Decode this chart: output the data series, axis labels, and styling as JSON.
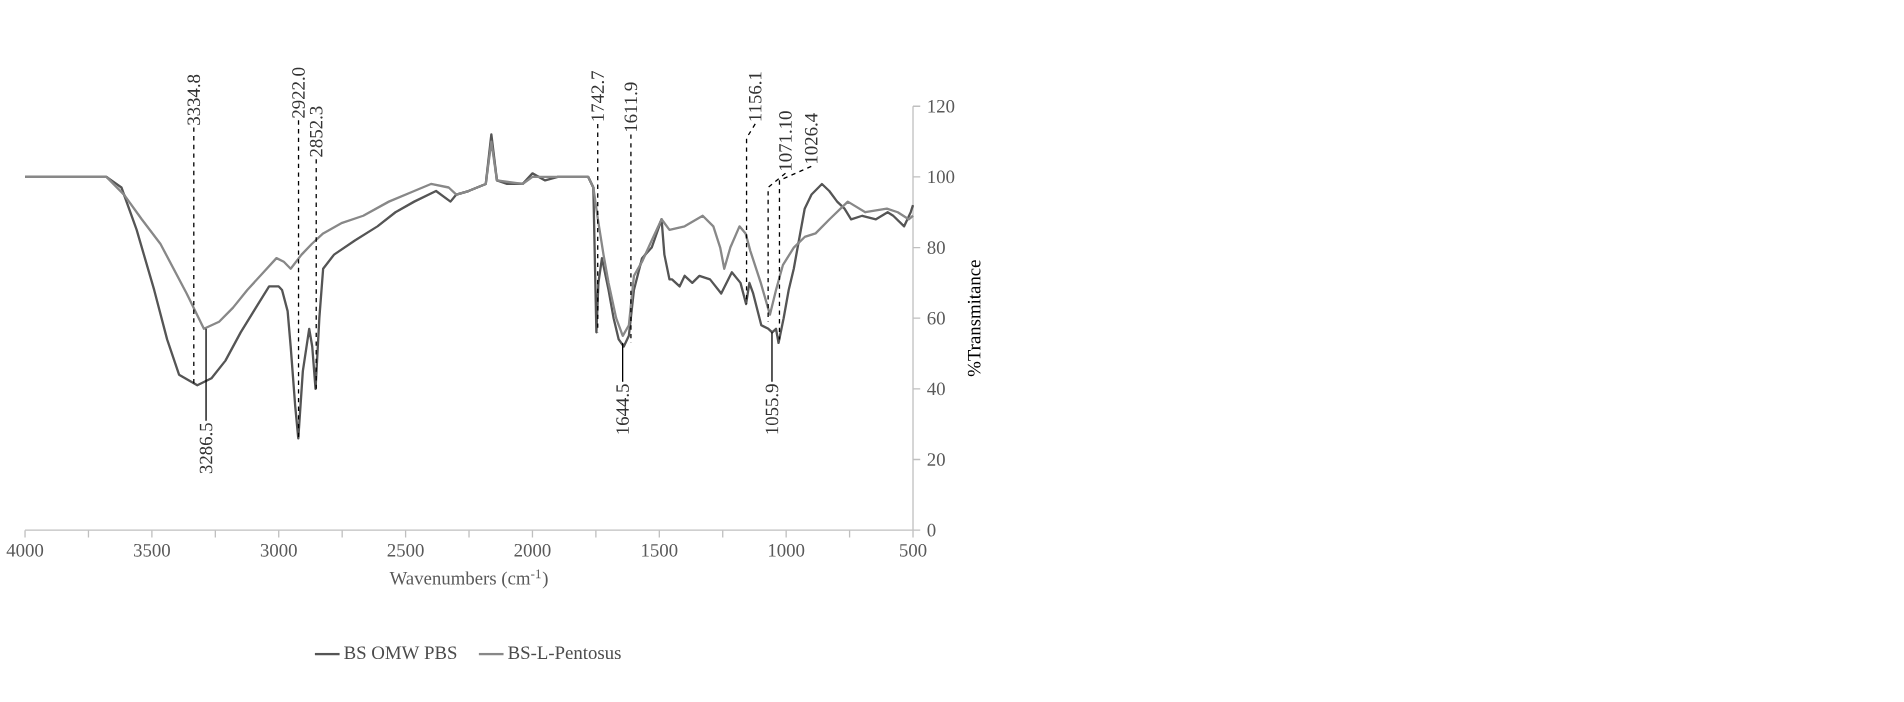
{
  "chart_data": {
    "type": "line",
    "xlabel": "Wavenumbers (cm$^{-1}$)",
    "ylabel": "%Transmitance",
    "xlim": [
      4000,
      500
    ],
    "xticks": [
      4000,
      {
        "value": 3750,
        "label": null
      },
      3500,
      {
        "value": 3250,
        "label": null
      },
      3000,
      {
        "value": 2750,
        "label": null
      },
      2500,
      {
        "value": 2250,
        "label": null
      },
      2000,
      {
        "value": 1750,
        "label": null
      },
      1500,
      {
        "value": 1250,
        "label": null
      },
      1000,
      {
        "value": 750,
        "label": null
      },
      500
    ],
    "ylim": [
      0,
      120
    ],
    "yticks": [
      0,
      20,
      40,
      60,
      80,
      100,
      120
    ],
    "grid": false,
    "legend": "bottom",
    "marker": "none",
    "line_style": "solid",
    "series": [
      {
        "name": "BS OMW PBS",
        "color": "#555555",
        "x": [
          4000,
          3900,
          3800,
          3700,
          3679,
          3620,
          3560,
          3491,
          3440,
          3393,
          3321,
          3265,
          3210,
          3150,
          3090,
          3038,
          3000,
          2987,
          2965,
          2953,
          2935,
          2923,
          2905,
          2880,
          2868,
          2855,
          2840,
          2825,
          2782,
          2700,
          2611,
          2540,
          2466,
          2380,
          2323,
          2300,
          2252,
          2184,
          2162,
          2140,
          2100,
          2039,
          2000,
          1950,
          1900,
          1850,
          1780,
          1760,
          1748,
          1740,
          1726,
          1700,
          1680,
          1660,
          1640,
          1620,
          1600,
          1568,
          1530,
          1491,
          1480,
          1460,
          1450,
          1420,
          1400,
          1370,
          1342,
          1300,
          1256,
          1214,
          1180,
          1158,
          1145,
          1130,
          1098,
          1070,
          1055,
          1040,
          1030,
          1010,
          990,
          970,
          927,
          900,
          859,
          830,
          799,
          770,
          744,
          700,
          646,
          600,
          578,
          535,
          509,
          500
        ],
        "values": [
          100,
          100,
          100,
          100,
          100,
          97,
          85,
          68,
          54,
          44,
          41,
          43,
          48,
          56,
          63,
          69,
          69,
          68,
          62,
          52,
          35,
          26,
          45,
          57,
          52,
          40,
          60,
          74,
          78,
          82,
          86,
          90,
          93,
          96,
          93,
          95,
          96,
          98,
          112,
          99,
          98,
          98,
          101,
          99,
          100,
          100,
          100,
          97,
          56,
          70,
          77,
          68,
          60,
          54,
          52,
          55,
          68,
          77,
          80,
          88,
          78,
          71,
          71,
          69,
          72,
          70,
          72,
          71,
          67,
          73,
          70,
          64,
          70,
          67,
          58,
          57,
          56,
          57,
          53,
          60,
          68,
          74,
          91,
          95,
          98,
          96,
          93,
          91,
          88,
          89,
          88,
          90,
          89,
          86,
          90,
          92
        ]
      },
      {
        "name": "BS-L-Pentosus",
        "color": "#888888",
        "x": [
          4000,
          3800,
          3700,
          3679,
          3610,
          3540,
          3466,
          3363,
          3295,
          3235,
          3180,
          3124,
          3060,
          3009,
          2980,
          2953,
          2910,
          2870,
          2825,
          2750,
          2667,
          2566,
          2466,
          2400,
          2330,
          2300,
          2252,
          2184,
          2162,
          2140,
          2039,
          2000,
          1900,
          1780,
          1760,
          1742,
          1720,
          1700,
          1670,
          1644,
          1620,
          1600,
          1568,
          1530,
          1491,
          1460,
          1400,
          1329,
          1287,
          1260,
          1244,
          1220,
          1184,
          1160,
          1141,
          1100,
          1064,
          1040,
          1013,
          970,
          927,
          884,
          829,
          757,
          688,
          603,
          560,
          517,
          500
        ],
        "values": [
          100,
          100,
          100,
          100,
          95,
          88,
          81,
          67,
          57,
          59,
          63,
          68,
          73,
          77,
          76,
          74,
          78,
          81,
          84,
          87,
          89,
          93,
          96,
          98,
          97,
          95,
          96,
          98,
          110,
          99,
          98,
          100,
          100,
          100,
          97,
          88,
          78,
          70,
          60,
          55,
          58,
          72,
          76,
          82,
          88,
          85,
          86,
          89,
          86,
          80,
          74,
          80,
          86,
          84,
          79,
          70,
          61,
          68,
          75,
          80,
          83,
          84,
          88,
          93,
          90,
          91,
          90,
          88,
          89
        ]
      }
    ],
    "annotations": [
      {
        "text": "3334.8",
        "x": 3334.8,
        "y": 41
      },
      {
        "text": "2922.0",
        "x": 2922.0,
        "y": 26
      },
      {
        "text": "2852.3",
        "x": 2852.3,
        "y": 40
      },
      {
        "text": "1742.7",
        "x": 1742.7,
        "y": 56
      },
      {
        "text": "1611.9",
        "x": 1611.9,
        "y": 53
      },
      {
        "text": "1156.1",
        "x": 1156.1,
        "y": 64
      },
      {
        "text": "1071.10",
        "x": 1071.1,
        "y": 59
      },
      {
        "text": "1026.4",
        "x": 1026.4,
        "y": 54
      },
      {
        "text": "3286.5",
        "x": 3286.5,
        "y": 57
      },
      {
        "text": "1644.5",
        "x": 1644.5,
        "y": 53
      },
      {
        "text": "1055.9",
        "x": 1055.9,
        "y": 56
      }
    ]
  }
}
